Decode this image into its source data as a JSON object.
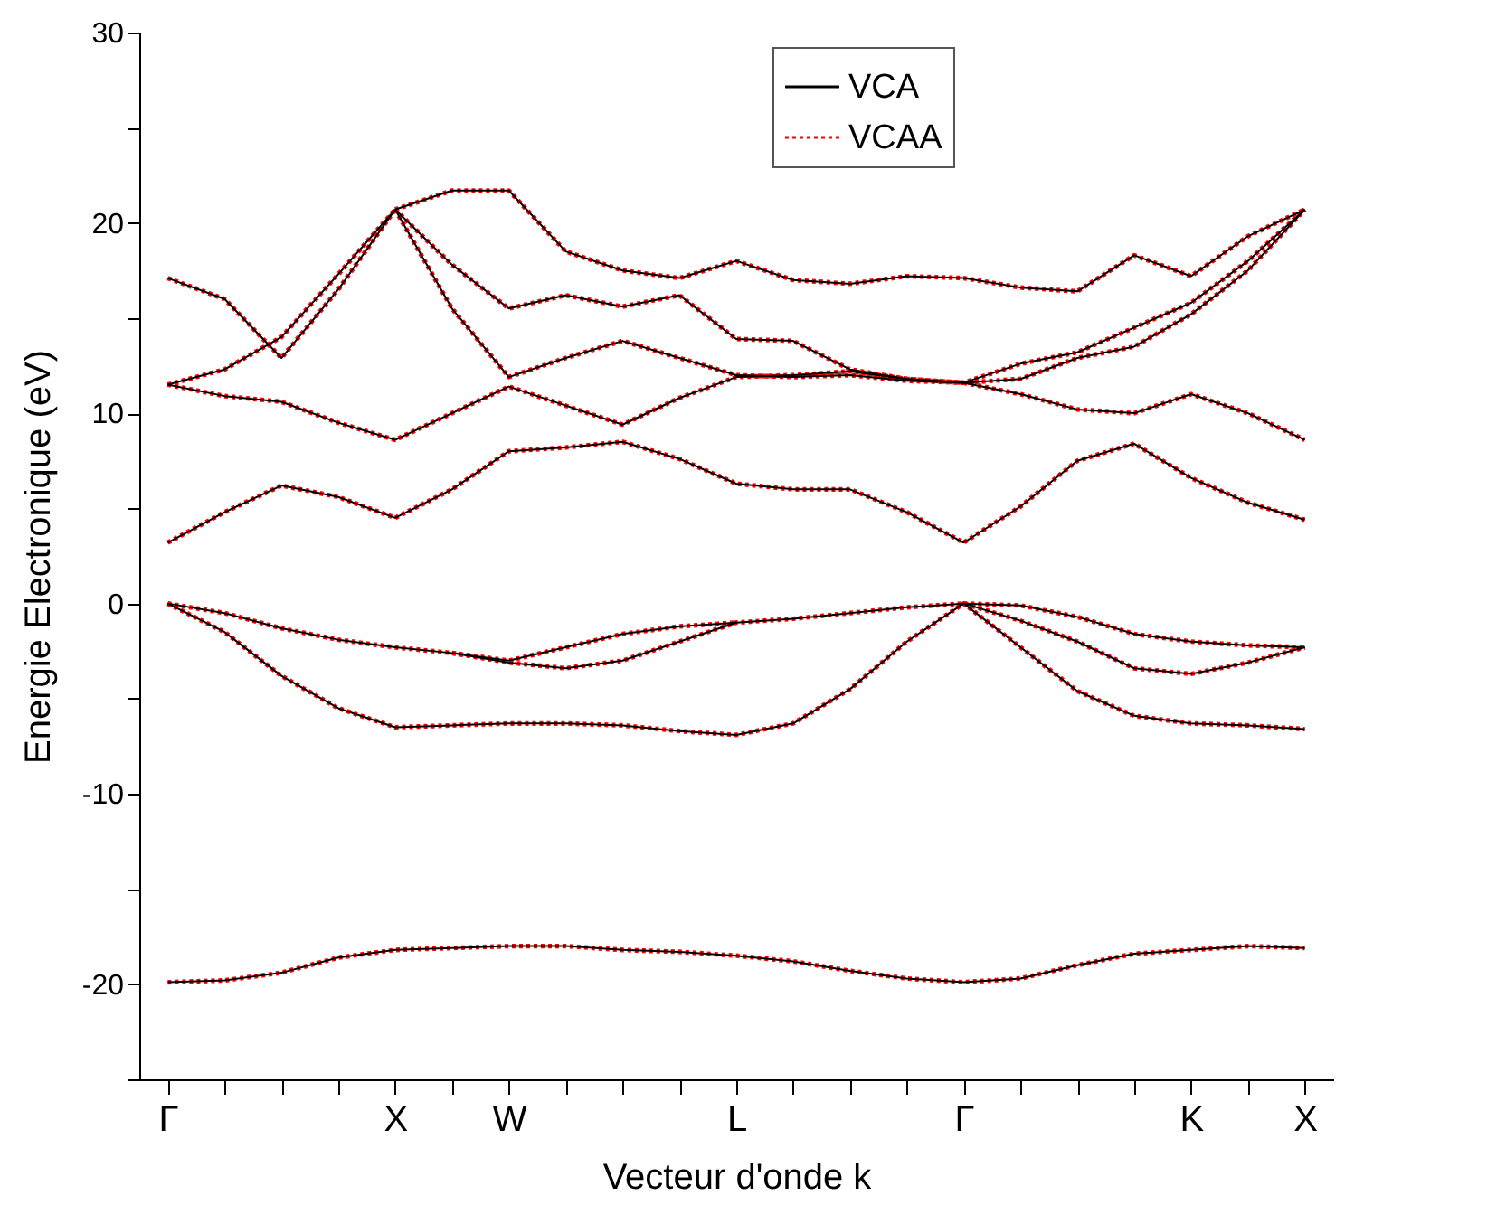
{
  "chart_data": {
    "type": "line",
    "xlabel": "Vecteur d'onde k",
    "ylabel": "Energie Electronique (eV)",
    "categories": [
      "Γ",
      null,
      null,
      null,
      "X",
      null,
      "W",
      null,
      null,
      null,
      "L",
      null,
      null,
      null,
      "Γ",
      null,
      null,
      null,
      "K",
      null,
      "X"
    ],
    "ylim": [
      -25,
      30
    ],
    "yticks": [
      {
        "value": -25,
        "label": null
      },
      -20,
      {
        "value": -15,
        "label": null
      },
      -10,
      {
        "value": -5,
        "label": null
      },
      0,
      {
        "value": 5,
        "label": null
      },
      10,
      {
        "value": 15,
        "label": null
      },
      20,
      {
        "value": 25,
        "label": null
      },
      30
    ],
    "grid": false,
    "legend": "top right",
    "marker": "none",
    "series": [
      {
        "name": "VCA",
        "color": "#000000",
        "line_style": "solid",
        "values": [
          -19.9,
          -19.8,
          -19.4,
          -18.6,
          -18.2,
          -18.1,
          -18.0,
          -18.0,
          -18.2,
          -18.3,
          -18.5,
          -18.8,
          -19.3,
          -19.7,
          -19.9,
          -19.7,
          -19.0,
          -18.4,
          -18.2,
          -18.0,
          -18.1
        ]
      },
      {
        "color": "#000000",
        "line_style": "solid",
        "values": [
          0,
          -1.5,
          -3.8,
          -5.5,
          -6.5,
          -6.4,
          -6.3,
          -6.3,
          -6.4,
          -6.7,
          -6.9,
          -6.3,
          -4.5,
          -2.0,
          0,
          -2.3,
          -4.6,
          -5.9,
          -6.3,
          -6.4,
          -6.6
        ]
      },
      {
        "color": "#000000",
        "line_style": "solid",
        "values": [
          0,
          -0.5,
          -1.3,
          -1.9,
          -2.3,
          -2.6,
          -3.1,
          -3.4,
          -3.0,
          -2.0,
          -1.0,
          -0.8,
          -0.5,
          -0.2,
          0,
          -0.9,
          -2.0,
          -3.4,
          -3.7,
          -3.1,
          -2.3
        ]
      },
      {
        "color": "#000000",
        "line_style": "solid",
        "values": [
          null,
          null,
          null,
          null,
          null,
          -2.6,
          -3.0,
          -2.3,
          -1.6,
          -1.2,
          -1.0,
          null,
          null,
          null,
          0,
          -0.1,
          -0.7,
          -1.6,
          -2.0,
          -2.2,
          -2.3
        ]
      },
      {
        "color": "#000000",
        "line_style": "solid",
        "values": [
          3.2,
          4.8,
          6.2,
          5.6,
          4.5,
          6.0,
          8.0,
          8.2,
          8.5,
          7.6,
          6.3,
          6.0,
          6.0,
          4.8,
          3.2,
          5.1,
          7.5,
          8.4,
          6.6,
          5.3,
          4.4
        ]
      },
      {
        "color": "#000000",
        "line_style": "solid",
        "values": [
          11.5,
          10.9,
          10.6,
          9.5,
          8.6,
          10.0,
          11.4,
          10.4,
          9.4,
          10.8,
          11.9,
          12.0,
          12.2,
          11.8,
          11.6,
          11.0,
          10.2,
          10.0,
          11.0,
          10.0,
          8.6
        ]
      },
      {
        "color": "#000000",
        "line_style": "solid",
        "values": [
          11.5,
          12.3,
          14.0,
          17.3,
          20.7,
          null,
          null,
          null,
          null,
          null,
          null,
          null,
          null,
          null,
          null,
          null,
          null,
          null,
          null,
          null,
          null
        ]
      },
      {
        "color": "#000000",
        "line_style": "solid",
        "values": [
          17.1,
          16.0,
          12.9,
          16.5,
          20.7,
          null,
          null,
          null,
          null,
          null,
          null,
          null,
          null,
          null,
          null,
          null,
          null,
          null,
          null,
          null,
          null
        ]
      },
      {
        "color": "#000000",
        "line_style": "solid",
        "values": [
          null,
          null,
          null,
          null,
          20.7,
          21.7,
          21.7,
          18.5,
          17.5,
          17.1,
          18.0,
          17.0,
          16.8,
          17.2,
          17.1,
          16.6,
          16.4,
          18.3,
          17.2,
          19.3,
          20.7
        ]
      },
      {
        "color": "#000000",
        "line_style": "solid",
        "values": [
          null,
          null,
          null,
          null,
          20.7,
          17.8,
          15.5,
          16.2,
          15.6,
          16.2,
          13.9,
          13.8,
          12.3,
          11.8,
          11.6,
          12.6,
          13.2,
          14.5,
          15.8,
          18.0,
          20.7
        ]
      },
      {
        "color": "#000000",
        "line_style": "solid",
        "values": [
          null,
          null,
          null,
          null,
          20.7,
          15.5,
          11.9,
          12.9,
          13.8,
          12.9,
          12.0,
          11.9,
          12.0,
          11.7,
          11.6,
          11.8,
          12.9,
          13.5,
          15.2,
          17.5,
          20.7
        ]
      },
      {
        "name": "VCAA",
        "color": "#ff0000",
        "line_style": "dotted",
        "values": [
          -19.9,
          -19.8,
          -19.4,
          -18.6,
          -18.2,
          -18.1,
          -18.0,
          -18.0,
          -18.2,
          -18.3,
          -18.5,
          -18.8,
          -19.3,
          -19.7,
          -19.9,
          -19.7,
          -19.0,
          -18.4,
          -18.2,
          -18.0,
          -18.1
        ]
      },
      {
        "color": "#ff0000",
        "line_style": "dotted",
        "values": [
          0,
          -1.5,
          -3.8,
          -5.5,
          -6.5,
          -6.4,
          -6.3,
          -6.3,
          -6.4,
          -6.7,
          -6.9,
          -6.3,
          -4.5,
          -2.0,
          0,
          -2.3,
          -4.6,
          -5.9,
          -6.3,
          -6.4,
          -6.6
        ]
      },
      {
        "color": "#ff0000",
        "line_style": "dotted",
        "values": [
          0,
          -0.5,
          -1.3,
          -1.9,
          -2.3,
          -2.6,
          -3.1,
          -3.4,
          -3.0,
          -2.0,
          -1.0,
          -0.8,
          -0.5,
          -0.2,
          0,
          -0.9,
          -2.0,
          -3.4,
          -3.7,
          -3.1,
          -2.3
        ]
      },
      {
        "color": "#ff0000",
        "line_style": "dotted",
        "values": [
          null,
          null,
          null,
          null,
          null,
          -2.6,
          -3.0,
          -2.3,
          -1.6,
          -1.2,
          -1.0,
          null,
          null,
          null,
          0,
          -0.1,
          -0.7,
          -1.6,
          -2.0,
          -2.2,
          -2.3
        ]
      },
      {
        "color": "#ff0000",
        "line_style": "dotted",
        "values": [
          3.2,
          4.8,
          6.2,
          5.6,
          4.5,
          6.0,
          8.0,
          8.2,
          8.5,
          7.6,
          6.3,
          6.0,
          6.0,
          4.8,
          3.2,
          5.1,
          7.5,
          8.4,
          6.6,
          5.3,
          4.4
        ]
      },
      {
        "color": "#ff0000",
        "line_style": "dotted",
        "values": [
          11.5,
          10.9,
          10.6,
          9.5,
          8.6,
          10.0,
          11.4,
          10.4,
          9.4,
          10.8,
          11.9,
          12.0,
          12.2,
          11.8,
          11.6,
          11.0,
          10.2,
          10.0,
          11.0,
          10.0,
          8.6
        ]
      },
      {
        "color": "#ff0000",
        "line_style": "dotted",
        "values": [
          11.5,
          12.3,
          14.0,
          17.3,
          20.7,
          null,
          null,
          null,
          null,
          null,
          null,
          null,
          null,
          null,
          null,
          null,
          null,
          null,
          null,
          null,
          null
        ]
      },
      {
        "color": "#ff0000",
        "line_style": "dotted",
        "values": [
          17.1,
          16.0,
          12.9,
          16.5,
          20.7,
          null,
          null,
          null,
          null,
          null,
          null,
          null,
          null,
          null,
          null,
          null,
          null,
          null,
          null,
          null,
          null
        ]
      },
      {
        "color": "#ff0000",
        "line_style": "dotted",
        "values": [
          null,
          null,
          null,
          null,
          20.7,
          21.7,
          21.7,
          18.5,
          17.5,
          17.1,
          18.0,
          17.0,
          16.8,
          17.2,
          17.1,
          16.6,
          16.4,
          18.3,
          17.2,
          19.3,
          20.7
        ]
      },
      {
        "color": "#ff0000",
        "line_style": "dotted",
        "values": [
          null,
          null,
          null,
          null,
          20.7,
          17.8,
          15.5,
          16.2,
          15.6,
          16.2,
          13.9,
          13.8,
          12.3,
          11.8,
          11.6,
          12.6,
          13.2,
          14.5,
          15.8,
          18.0,
          20.7
        ]
      },
      {
        "color": "#ff0000",
        "line_style": "dotted",
        "values": [
          null,
          null,
          null,
          null,
          20.7,
          15.5,
          11.9,
          12.9,
          13.8,
          12.9,
          12.0,
          11.9,
          12.0,
          11.7,
          11.6,
          11.8,
          12.9,
          13.5,
          15.2,
          17.5,
          20.7
        ]
      }
    ]
  }
}
